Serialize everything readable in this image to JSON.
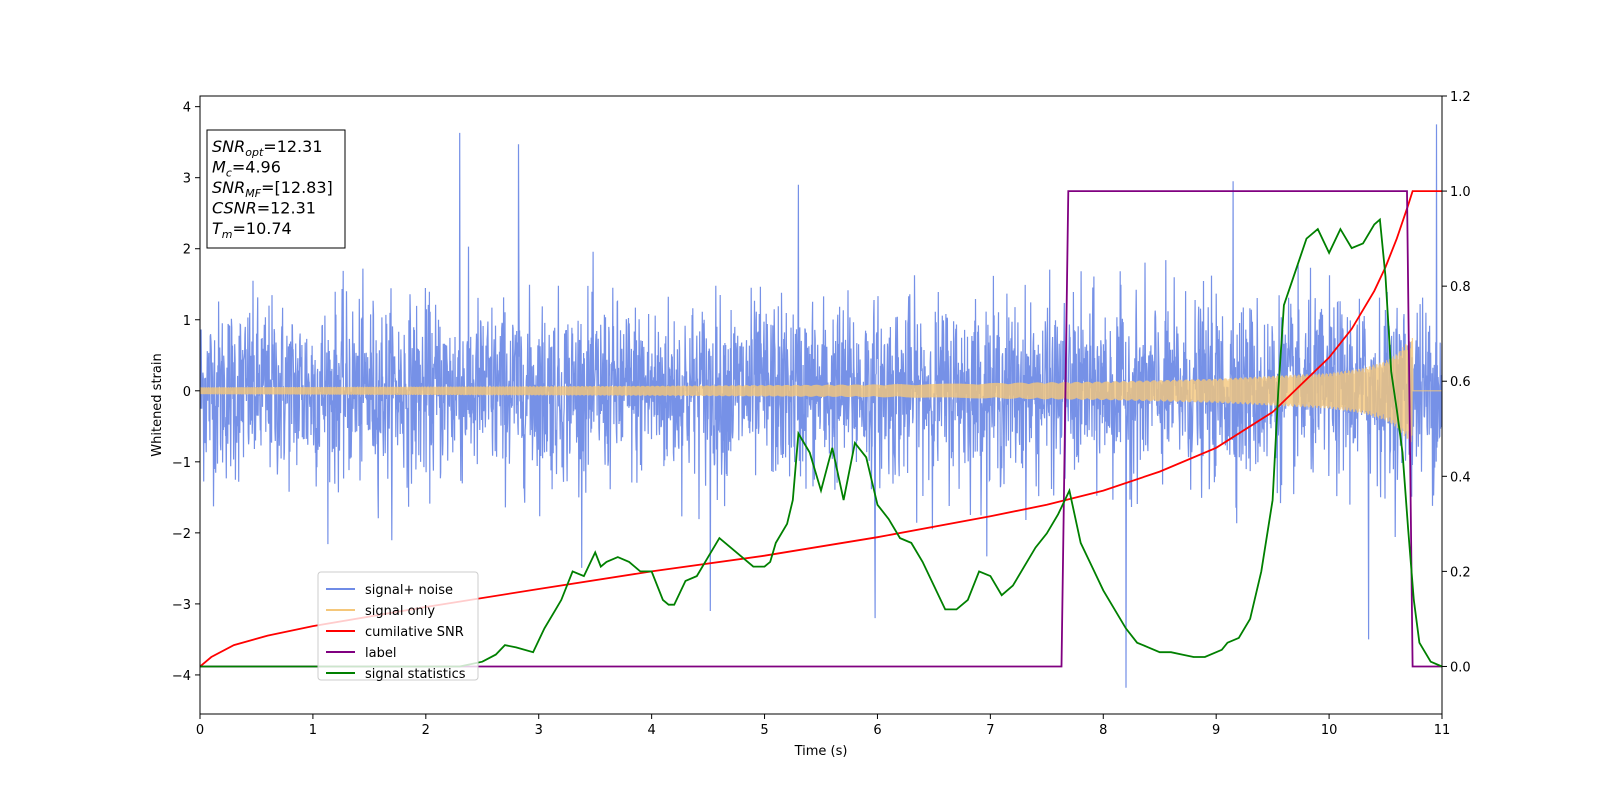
{
  "chart_data": {
    "type": "line",
    "xlabel": "Time (s)",
    "ylabel": "Whitened strain",
    "xlim": [
      0,
      11
    ],
    "ylim_left": [
      -4.55,
      4.15
    ],
    "ylim_right": [
      -0.1,
      1.2
    ],
    "x_ticks": [
      "0",
      "1",
      "2",
      "3",
      "4",
      "5",
      "6",
      "7",
      "8",
      "9",
      "10",
      "11"
    ],
    "y_ticks_left": [
      "−4",
      "−3",
      "−2",
      "−1",
      "0",
      "1",
      "2",
      "3",
      "4"
    ],
    "y_ticks_right": [
      "0.0",
      "0.2",
      "0.4",
      "0.6",
      "0.8",
      "1.0",
      "1.2"
    ],
    "grid": false,
    "legend_position": "lower-left",
    "annotation": {
      "lines": [
        {
          "main": "SNR",
          "sub": "opt",
          "rest": "=12.31"
        },
        {
          "main": "M",
          "sub": "c",
          "rest": "=4.96"
        },
        {
          "main": "SNR",
          "sub": "MF",
          "rest": "=[12.83]"
        },
        {
          "main": "CSNR",
          "sub": "",
          "rest": "=12.31"
        },
        {
          "main": "T",
          "sub": "m",
          "rest": "=10.74"
        }
      ]
    },
    "series": [
      {
        "name": "signal+ noise",
        "color": "#6f8be6",
        "axis": "left",
        "kind": "noise",
        "sigma": 1.0,
        "peaks": [
          [
            2.3,
            3.63
          ],
          [
            2.82,
            3.47
          ],
          [
            10.95,
            3.75
          ],
          [
            8.2,
            -4.18
          ],
          [
            9.15,
            2.95
          ],
          [
            5.3,
            2.9
          ],
          [
            4.52,
            -3.1
          ],
          [
            5.98,
            -3.2
          ],
          [
            10.35,
            -3.5
          ]
        ]
      },
      {
        "name": "signal only",
        "color": "#f5c77a",
        "axis": "left",
        "kind": "chirp",
        "envelope_x": [
          0,
          2,
          4,
          6,
          8,
          9,
          10,
          10.3,
          10.5,
          10.6,
          10.7,
          10.74
        ],
        "envelope_y": [
          0.05,
          0.06,
          0.07,
          0.09,
          0.13,
          0.17,
          0.25,
          0.32,
          0.42,
          0.52,
          0.7,
          0.75
        ]
      },
      {
        "name": "cumilative SNR",
        "color": "#ff0000",
        "axis": "right",
        "x": [
          0,
          0.1,
          0.3,
          0.6,
          1,
          2,
          3,
          4,
          5,
          6,
          7,
          7.5,
          8,
          8.5,
          9,
          9.5,
          10,
          10.2,
          10.4,
          10.5,
          10.6,
          10.7,
          10.74,
          11
        ],
        "y": [
          0.0,
          0.02,
          0.045,
          0.065,
          0.085,
          0.125,
          0.163,
          0.2,
          0.233,
          0.272,
          0.316,
          0.34,
          0.37,
          0.41,
          0.46,
          0.535,
          0.65,
          0.71,
          0.79,
          0.84,
          0.9,
          0.97,
          1.0,
          1.0
        ]
      },
      {
        "name": "label",
        "color": "#800080",
        "axis": "right",
        "x": [
          0,
          7.63,
          7.69,
          10.69,
          10.74,
          11
        ],
        "y": [
          0.0,
          0.0,
          1.0,
          1.0,
          0.0,
          0.0
        ]
      },
      {
        "name": "signal statistics",
        "color": "#008000",
        "axis": "right",
        "x": [
          0,
          0.5,
          1.0,
          1.5,
          2.0,
          2.3,
          2.5,
          2.62,
          2.7,
          2.8,
          2.95,
          3.05,
          3.15,
          3.2,
          3.3,
          3.4,
          3.5,
          3.55,
          3.6,
          3.7,
          3.8,
          3.9,
          4.0,
          4.1,
          4.15,
          4.2,
          4.3,
          4.4,
          4.5,
          4.6,
          4.7,
          4.8,
          4.9,
          5.0,
          5.05,
          5.1,
          5.2,
          5.25,
          5.3,
          5.4,
          5.5,
          5.6,
          5.7,
          5.8,
          5.9,
          6.0,
          6.1,
          6.2,
          6.3,
          6.4,
          6.5,
          6.6,
          6.7,
          6.8,
          6.9,
          7.0,
          7.1,
          7.2,
          7.3,
          7.4,
          7.5,
          7.6,
          7.7,
          7.8,
          7.9,
          8.0,
          8.1,
          8.2,
          8.3,
          8.4,
          8.5,
          8.6,
          8.7,
          8.8,
          8.9,
          9.0,
          9.05,
          9.1,
          9.2,
          9.3,
          9.35,
          9.4,
          9.5,
          9.55,
          9.6,
          9.7,
          9.8,
          9.9,
          10.0,
          10.1,
          10.2,
          10.3,
          10.4,
          10.45,
          10.5,
          10.55,
          10.6,
          10.65,
          10.7,
          10.75,
          10.8,
          10.9,
          11.0
        ],
        "y": [
          0.0,
          0.0,
          0.0,
          0.0,
          0.0,
          0.0,
          0.01,
          0.025,
          0.045,
          0.04,
          0.03,
          0.08,
          0.12,
          0.14,
          0.2,
          0.19,
          0.24,
          0.21,
          0.22,
          0.23,
          0.22,
          0.2,
          0.2,
          0.14,
          0.13,
          0.13,
          0.18,
          0.19,
          0.23,
          0.27,
          0.25,
          0.23,
          0.21,
          0.21,
          0.22,
          0.26,
          0.3,
          0.35,
          0.49,
          0.45,
          0.37,
          0.46,
          0.35,
          0.47,
          0.44,
          0.34,
          0.31,
          0.27,
          0.26,
          0.22,
          0.17,
          0.12,
          0.12,
          0.14,
          0.2,
          0.19,
          0.15,
          0.17,
          0.21,
          0.25,
          0.28,
          0.32,
          0.37,
          0.26,
          0.21,
          0.16,
          0.12,
          0.08,
          0.05,
          0.04,
          0.03,
          0.03,
          0.025,
          0.02,
          0.02,
          0.03,
          0.035,
          0.05,
          0.06,
          0.1,
          0.15,
          0.2,
          0.35,
          0.58,
          0.76,
          0.83,
          0.9,
          0.92,
          0.87,
          0.92,
          0.88,
          0.89,
          0.93,
          0.94,
          0.82,
          0.62,
          0.54,
          0.45,
          0.29,
          0.14,
          0.05,
          0.01,
          0.0
        ]
      }
    ]
  }
}
